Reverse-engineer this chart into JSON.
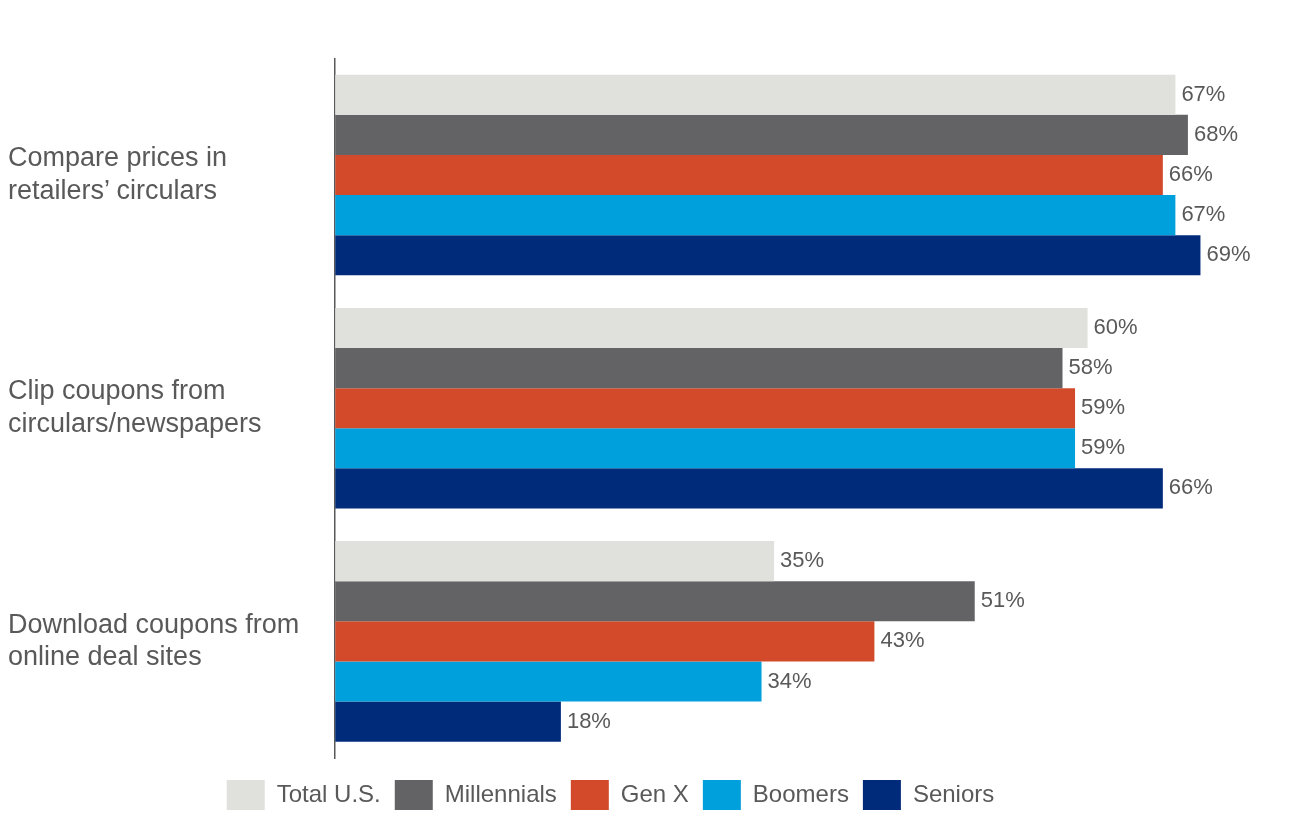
{
  "chart_data": {
    "type": "bar",
    "orientation": "horizontal",
    "categories": [
      "Compare prices in retailers’ circulars",
      "Clip coupons from circulars/newspapers",
      "Download coupons from online deal sites"
    ],
    "series": [
      {
        "name": "Total U.S.",
        "color": "#e0e0dc",
        "values": [
          67,
          60,
          35
        ],
        "value_labels": [
          "67%",
          "60%",
          "35%"
        ]
      },
      {
        "name": "Millennials",
        "color": "#636366",
        "values": [
          68,
          58,
          51
        ],
        "value_labels": [
          "68%",
          "58%",
          "51%"
        ]
      },
      {
        "name": "Gen X",
        "color": "#d24a2a",
        "values": [
          66,
          59,
          43
        ],
        "value_labels": [
          "66%",
          "59%",
          "43%"
        ]
      },
      {
        "name": "Boomers",
        "color": "#00a0dc",
        "values": [
          67,
          59,
          34
        ],
        "value_labels": [
          "67%",
          "59%",
          "34%"
        ]
      },
      {
        "name": "Seniors",
        "color": "#002a7a",
        "values": [
          69,
          66,
          18
        ],
        "value_labels": [
          "69%",
          "66%",
          "18%"
        ]
      }
    ],
    "legend": "bottom",
    "grid": false
  }
}
